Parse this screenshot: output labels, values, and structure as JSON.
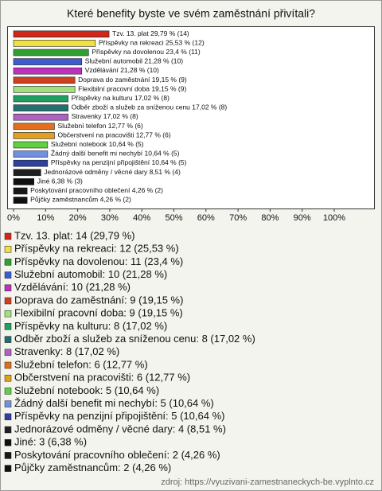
{
  "chart_data": {
    "type": "hbar",
    "title": "Které benefity byste ve svém zaměstnání přivítali?",
    "categories": [
      "Tzv. 13. plat",
      "Příspěvky na rekreaci",
      "Příspěvky na dovolenou",
      "Služební automobil",
      "Vzdělávání",
      "Doprava do zaměstnání",
      "Flexibilní pracovní doba",
      "Příspěvky na kulturu",
      "Odběr zboží a služeb za sníženou cenu",
      "Stravenky",
      "Služební telefon",
      "Občerstvení na pracovišti",
      "Služební notebook",
      "Žádný další benefit mi nechybí",
      "Příspěvky na penzijní připojištění",
      "Jednorázové odměny / věcné dary",
      "Jiné",
      "Poskytování pracovního oblečení",
      "Půjčky zaměstnancům"
    ],
    "values": [
      29.79,
      25.53,
      23.4,
      21.28,
      21.28,
      19.15,
      19.15,
      17.02,
      17.02,
      17.02,
      12.77,
      12.77,
      10.64,
      10.64,
      10.64,
      8.51,
      6.38,
      4.26,
      4.26
    ],
    "value_labels": [
      "29,79 % (14)",
      "25,53 % (12)",
      "23,4 % (11)",
      "21,28 % (10)",
      "21,28 % (10)",
      "19,15 % (9)",
      "19,15 % (9)",
      "17,02 % (8)",
      "17,02 % (8)",
      "17,02 % (8)",
      "12,77 % (6)",
      "12,77 % (6)",
      "10,64 % (5)",
      "10,64 % (5)",
      "10,64 % (5)",
      "8,51 % (4)",
      "6,38 % (3)",
      "4,26 % (2)",
      "4,26 % (2)"
    ],
    "colors": [
      "#d02818",
      "#f0e040",
      "#30a030",
      "#3c5cd0",
      "#c030c0",
      "#d04020",
      "#a0e080",
      "#20a060",
      "#207070",
      "#b060c0",
      "#e07020",
      "#e0a020",
      "#60d040",
      "#7090e0",
      "#3040a0",
      "#202020",
      "#101010",
      "#181818",
      "#101010"
    ],
    "legend_labels": [
      "Tzv. 13. plat: 14 (29,79 %)",
      "Příspěvky na rekreaci: 12 (25,53 %)",
      "Příspěvky na dovolenou: 11 (23,4 %)",
      "Služební automobil: 10 (21,28 %)",
      "Vzdělávání: 10 (21,28 %)",
      "Doprava do zaměstnání: 9 (19,15 %)",
      "Flexibilní pracovní doba: 9 (19,15 %)",
      "Příspěvky na kulturu: 8 (17,02 %)",
      "Odběr zboží a služeb za sníženou cenu: 8 (17,02 %)",
      "Stravenky: 8 (17,02 %)",
      "Služební telefon: 6 (12,77 %)",
      "Občerstvení na pracovišti: 6 (12,77 %)",
      "Služební notebook: 5 (10,64 %)",
      "Žádný další benefit mi nechybí: 5 (10,64 %)",
      "Příspěvky na penzijní připojištění: 5 (10,64 %)",
      "Jednorázové odměny / věcné dary: 4 (8,51 %)",
      "Jiné: 3 (6,38 %)",
      "Poskytování pracovního oblečení: 2 (4,26 %)",
      "Půjčky zaměstnancům: 2 (4,26 %)"
    ],
    "xlim": [
      0,
      100
    ],
    "xticks": [
      {
        "value": 0,
        "label": "0%"
      },
      {
        "value": 10,
        "label": "10%"
      },
      {
        "value": 20,
        "label": "20%"
      },
      {
        "value": 30,
        "label": "30%"
      },
      {
        "value": 40,
        "label": "40%"
      },
      {
        "value": 50,
        "label": "50%"
      },
      {
        "value": 60,
        "label": "60%"
      },
      {
        "value": 70,
        "label": "70%"
      },
      {
        "value": 80,
        "label": "80%"
      },
      {
        "value": 90,
        "label": "90%"
      },
      {
        "value": 100,
        "label": "100%"
      }
    ],
    "source": "zdroj: https://vyuzivani-zamestnaneckych-be.vyplnto.cz"
  }
}
